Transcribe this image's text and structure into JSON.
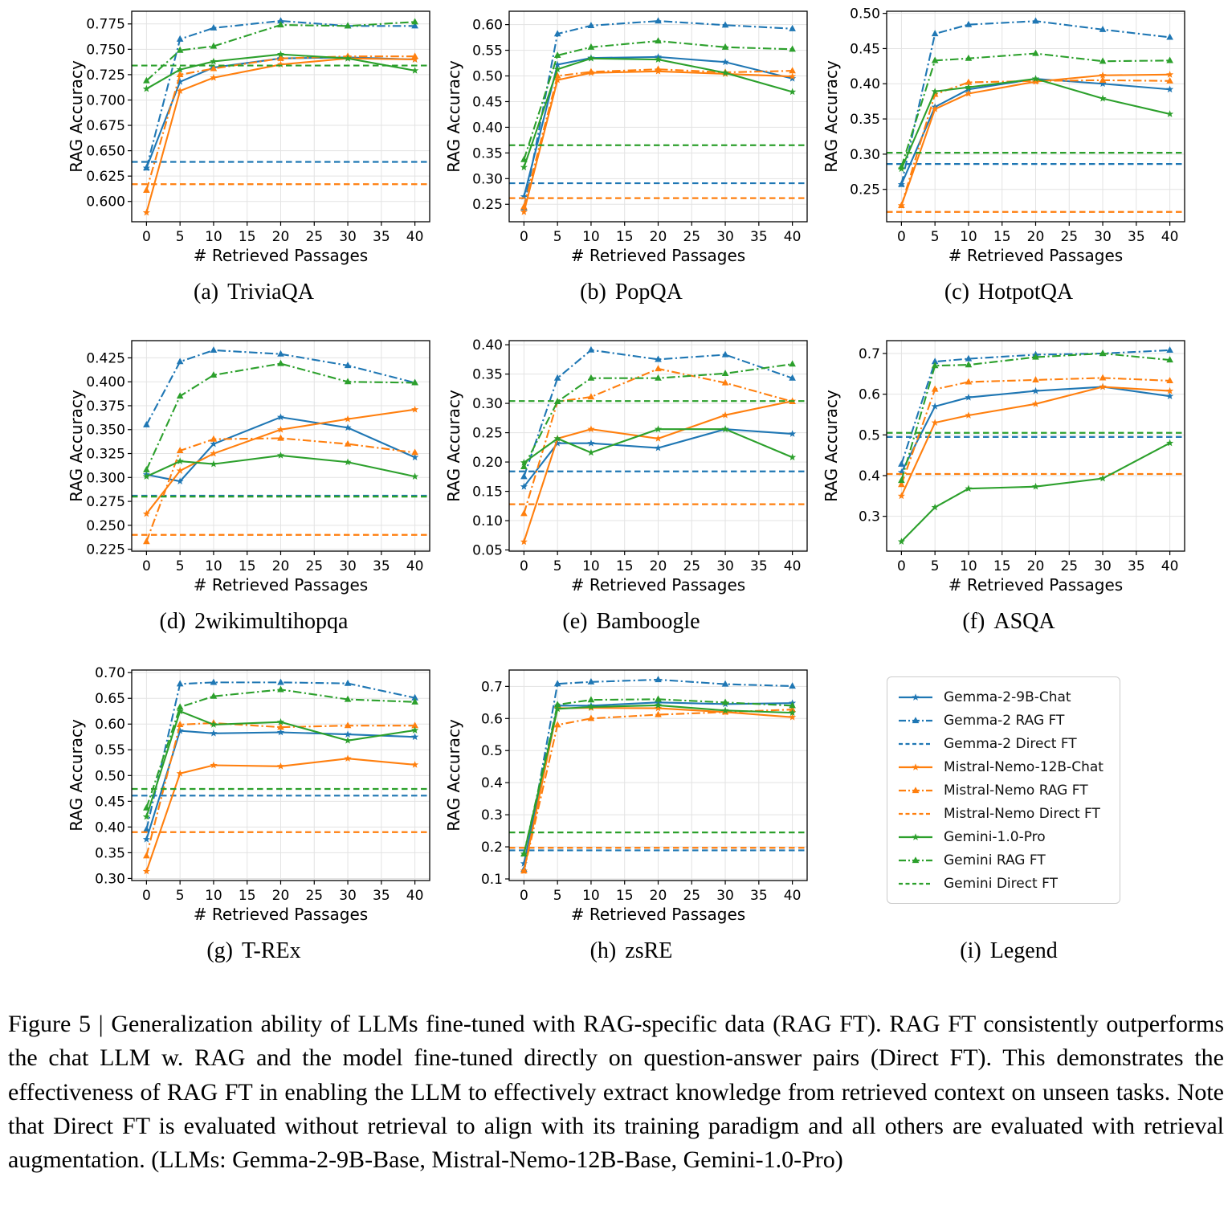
{
  "figure": {
    "caption": "Figure 5 | Generalization ability of LLMs fine-tuned with RAG-specific data (RAG FT). RAG FT consistently outperforms the chat LLM w. RAG and the model fine-tuned directly on question-answer pairs (Direct FT). This demonstrates the effectiveness of RAG FT in enabling the LLM to effectively extract knowledge from retrieved context on unseen tasks. Note that Direct FT is evaluated without retrieval to align with its training paradigm and all others are evaluated with retrieval augmentation. (LLMs: Gemma-2-9B-Base, Mistral-Nemo-12B-Base, Gemini-1.0-Pro)"
  },
  "axes": {
    "xlabel": "# Retrieved Passages",
    "ylabel": "RAG Accuracy",
    "x": [
      0,
      5,
      10,
      20,
      30,
      40
    ],
    "xticks": [
      0,
      5,
      10,
      15,
      20,
      25,
      30,
      35,
      40
    ],
    "xlim": [
      -2.2,
      42.2
    ]
  },
  "models": [
    {
      "name": "Gemma-2-9B-Chat",
      "color": "#1f77b4",
      "style": "solid",
      "marker": "star"
    },
    {
      "name": "Gemma-2 RAG FT",
      "color": "#1f77b4",
      "style": "dashdot",
      "marker": "triangle"
    },
    {
      "name": "Gemma-2 Direct FT",
      "color": "#1f77b4",
      "style": "dashed",
      "marker": "none"
    },
    {
      "name": "Mistral-Nemo-12B-Chat",
      "color": "#ff7f0e",
      "style": "solid",
      "marker": "star"
    },
    {
      "name": "Mistral-Nemo RAG FT",
      "color": "#ff7f0e",
      "style": "dashdot",
      "marker": "triangle"
    },
    {
      "name": "Mistral-Nemo Direct FT",
      "color": "#ff7f0e",
      "style": "dashed",
      "marker": "none"
    },
    {
      "name": "Gemini-1.0-Pro",
      "color": "#2ca02c",
      "style": "solid",
      "marker": "star"
    },
    {
      "name": "Gemini RAG FT",
      "color": "#2ca02c",
      "style": "dashdot",
      "marker": "triangle"
    },
    {
      "name": "Gemini Direct FT",
      "color": "#2ca02c",
      "style": "dashed",
      "marker": "none"
    }
  ],
  "chart_data": [
    {
      "type": "line",
      "label": "(a)",
      "title": "TriviaQA",
      "xlabel": "# Retrieved Passages",
      "ylabel": "RAG Accuracy",
      "ylim": [
        0.58,
        0.7875
      ],
      "ydec": 3,
      "yticks": [
        0.6,
        0.625,
        0.65,
        0.675,
        0.7,
        0.725,
        0.75,
        0.775
      ],
      "series": [
        {
          "name": "Gemma-2-9B-Chat",
          "values": [
            0.633,
            0.718,
            0.732,
            0.741,
            0.742,
            0.74
          ]
        },
        {
          "name": "Gemma-2 RAG FT",
          "values": [
            0.633,
            0.76,
            0.771,
            0.778,
            0.773,
            0.773
          ]
        },
        {
          "name": "Gemma-2 Direct FT",
          "hline": 0.639
        },
        {
          "name": "Mistral-Nemo-12B-Chat",
          "values": [
            0.589,
            0.709,
            0.722,
            0.735,
            0.741,
            0.74
          ]
        },
        {
          "name": "Mistral-Nemo RAG FT",
          "values": [
            0.611,
            0.725,
            0.731,
            0.741,
            0.743,
            0.743
          ]
        },
        {
          "name": "Mistral-Nemo Direct FT",
          "hline": 0.617
        },
        {
          "name": "Gemini-1.0-Pro",
          "values": [
            0.711,
            0.73,
            0.738,
            0.745,
            0.741,
            0.729
          ]
        },
        {
          "name": "Gemini RAG FT",
          "values": [
            0.719,
            0.749,
            0.753,
            0.774,
            0.773,
            0.777
          ]
        },
        {
          "name": "Gemini Direct FT",
          "hline": 0.734
        }
      ]
    },
    {
      "type": "line",
      "label": "(b)",
      "title": "PopQA",
      "xlabel": "# Retrieved Passages",
      "ylabel": "RAG Accuracy",
      "ylim": [
        0.216,
        0.626
      ],
      "ydec": 2,
      "yticks": [
        0.25,
        0.3,
        0.35,
        0.4,
        0.45,
        0.5,
        0.55,
        0.6
      ],
      "series": [
        {
          "name": "Gemma-2-9B-Chat",
          "values": [
            0.265,
            0.522,
            0.535,
            0.537,
            0.527,
            0.495
          ]
        },
        {
          "name": "Gemma-2 RAG FT",
          "values": [
            0.243,
            0.582,
            0.598,
            0.607,
            0.599,
            0.592
          ]
        },
        {
          "name": "Gemma-2 Direct FT",
          "hline": 0.291
        },
        {
          "name": "Mistral-Nemo-12B-Chat",
          "values": [
            0.235,
            0.492,
            0.506,
            0.509,
            0.504,
            0.499
          ]
        },
        {
          "name": "Mistral-Nemo RAG FT",
          "values": [
            0.245,
            0.5,
            0.508,
            0.513,
            0.507,
            0.51
          ]
        },
        {
          "name": "Mistral-Nemo Direct FT",
          "hline": 0.262
        },
        {
          "name": "Gemini-1.0-Pro",
          "values": [
            0.322,
            0.513,
            0.534,
            0.532,
            0.506,
            0.469
          ]
        },
        {
          "name": "Gemini RAG FT",
          "values": [
            0.337,
            0.54,
            0.556,
            0.568,
            0.556,
            0.552
          ]
        },
        {
          "name": "Gemini Direct FT",
          "hline": 0.365
        }
      ]
    },
    {
      "type": "line",
      "label": "(c)",
      "title": "HotpotQA",
      "xlabel": "# Retrieved Passages",
      "ylabel": "RAG Accuracy",
      "ylim": [
        0.204,
        0.503
      ],
      "ydec": 2,
      "yticks": [
        0.25,
        0.3,
        0.35,
        0.4,
        0.45,
        0.5
      ],
      "series": [
        {
          "name": "Gemma-2-9B-Chat",
          "values": [
            0.257,
            0.367,
            0.392,
            0.407,
            0.4,
            0.392
          ]
        },
        {
          "name": "Gemma-2 RAG FT",
          "values": [
            0.257,
            0.471,
            0.484,
            0.489,
            0.477,
            0.466
          ]
        },
        {
          "name": "Gemma-2 Direct FT",
          "hline": 0.286
        },
        {
          "name": "Mistral-Nemo-12B-Chat",
          "values": [
            0.227,
            0.364,
            0.386,
            0.403,
            0.412,
            0.413
          ]
        },
        {
          "name": "Mistral-Nemo RAG FT",
          "values": [
            0.227,
            0.385,
            0.402,
            0.404,
            0.405,
            0.404
          ]
        },
        {
          "name": "Mistral-Nemo Direct FT",
          "hline": 0.218
        },
        {
          "name": "Gemini-1.0-Pro",
          "values": [
            0.279,
            0.389,
            0.395,
            0.407,
            0.379,
            0.357
          ]
        },
        {
          "name": "Gemini RAG FT",
          "values": [
            0.282,
            0.433,
            0.436,
            0.443,
            0.432,
            0.433
          ]
        },
        {
          "name": "Gemini Direct FT",
          "hline": 0.302
        }
      ]
    },
    {
      "type": "line",
      "label": "(d)",
      "title": "2wikimultihopqa",
      "xlabel": "# Retrieved Passages",
      "ylabel": "RAG Accuracy",
      "ylim": [
        0.223,
        0.443
      ],
      "ydec": 3,
      "yticks": [
        0.225,
        0.25,
        0.275,
        0.3,
        0.325,
        0.35,
        0.375,
        0.4,
        0.425
      ],
      "series": [
        {
          "name": "Gemma-2-9B-Chat",
          "values": [
            0.303,
            0.296,
            0.335,
            0.363,
            0.352,
            0.321
          ]
        },
        {
          "name": "Gemma-2 RAG FT",
          "values": [
            0.355,
            0.421,
            0.433,
            0.429,
            0.417,
            0.399
          ]
        },
        {
          "name": "Gemma-2 Direct FT",
          "hline": 0.281
        },
        {
          "name": "Mistral-Nemo-12B-Chat",
          "values": [
            0.262,
            0.307,
            0.325,
            0.35,
            0.361,
            0.371
          ]
        },
        {
          "name": "Mistral-Nemo RAG FT",
          "values": [
            0.233,
            0.328,
            0.34,
            0.341,
            0.335,
            0.326
          ]
        },
        {
          "name": "Mistral-Nemo Direct FT",
          "hline": 0.24
        },
        {
          "name": "Gemini-1.0-Pro",
          "values": [
            0.301,
            0.317,
            0.314,
            0.323,
            0.316,
            0.301
          ]
        },
        {
          "name": "Gemini RAG FT",
          "values": [
            0.308,
            0.385,
            0.407,
            0.419,
            0.4,
            0.399
          ]
        },
        {
          "name": "Gemini Direct FT",
          "hline": 0.28
        }
      ]
    },
    {
      "type": "line",
      "label": "(e)",
      "title": "Bamboogle",
      "xlabel": "# Retrieved Passages",
      "ylabel": "RAG Accuracy",
      "ylim": [
        0.048,
        0.407
      ],
      "ydec": 2,
      "yticks": [
        0.05,
        0.1,
        0.15,
        0.2,
        0.25,
        0.3,
        0.35,
        0.4
      ],
      "series": [
        {
          "name": "Gemma-2-9B-Chat",
          "values": [
            0.158,
            0.232,
            0.232,
            0.224,
            0.256,
            0.248
          ]
        },
        {
          "name": "Gemma-2 RAG FT",
          "values": [
            0.175,
            0.343,
            0.391,
            0.375,
            0.383,
            0.343
          ]
        },
        {
          "name": "Gemma-2 Direct FT",
          "hline": 0.184
        },
        {
          "name": "Mistral-Nemo-12B-Chat",
          "values": [
            0.064,
            0.24,
            0.256,
            0.24,
            0.28,
            0.304
          ]
        },
        {
          "name": "Mistral-Nemo RAG FT",
          "values": [
            0.112,
            0.303,
            0.311,
            0.359,
            0.335,
            0.303
          ]
        },
        {
          "name": "Mistral-Nemo Direct FT",
          "hline": 0.128
        },
        {
          "name": "Gemini-1.0-Pro",
          "values": [
            0.199,
            0.24,
            0.216,
            0.256,
            0.256,
            0.208
          ]
        },
        {
          "name": "Gemini RAG FT",
          "values": [
            0.192,
            0.303,
            0.343,
            0.343,
            0.351,
            0.367
          ]
        },
        {
          "name": "Gemini Direct FT",
          "hline": 0.304
        }
      ]
    },
    {
      "type": "line",
      "label": "(f)",
      "title": "ASQA",
      "xlabel": "# Retrieved Passages",
      "ylabel": "RAG Accuracy",
      "ylim": [
        0.2145,
        0.7315
      ],
      "ydec": 1,
      "yticks": [
        0.3,
        0.4,
        0.5,
        0.6,
        0.7
      ],
      "series": [
        {
          "name": "Gemma-2-9B-Chat",
          "values": [
            0.408,
            0.57,
            0.592,
            0.608,
            0.618,
            0.595
          ]
        },
        {
          "name": "Gemma-2 RAG FT",
          "values": [
            0.428,
            0.68,
            0.687,
            0.697,
            0.7,
            0.708
          ]
        },
        {
          "name": "Gemma-2 Direct FT",
          "hline": 0.495
        },
        {
          "name": "Mistral-Nemo-12B-Chat",
          "values": [
            0.35,
            0.53,
            0.548,
            0.576,
            0.618,
            0.608
          ]
        },
        {
          "name": "Mistral-Nemo RAG FT",
          "values": [
            0.378,
            0.612,
            0.63,
            0.635,
            0.64,
            0.633
          ]
        },
        {
          "name": "Mistral-Nemo Direct FT",
          "hline": 0.404
        },
        {
          "name": "Gemini-1.0-Pro",
          "values": [
            0.238,
            0.322,
            0.368,
            0.373,
            0.393,
            0.48
          ]
        },
        {
          "name": "Gemini RAG FT",
          "values": [
            0.388,
            0.67,
            0.672,
            0.691,
            0.7,
            0.684
          ]
        },
        {
          "name": "Gemini Direct FT",
          "hline": 0.505
        }
      ]
    },
    {
      "type": "line",
      "label": "(g)",
      "title": "T-REx",
      "xlabel": "# Retrieved Passages",
      "ylabel": "RAG Accuracy",
      "ylim": [
        0.296,
        0.705
      ],
      "ydec": 2,
      "yticks": [
        0.3,
        0.35,
        0.4,
        0.45,
        0.5,
        0.55,
        0.6,
        0.65,
        0.7
      ],
      "series": [
        {
          "name": "Gemma-2-9B-Chat",
          "values": [
            0.376,
            0.587,
            0.582,
            0.584,
            0.58,
            0.575
          ]
        },
        {
          "name": "Gemma-2 RAG FT",
          "values": [
            0.395,
            0.678,
            0.681,
            0.681,
            0.679,
            0.651
          ]
        },
        {
          "name": "Gemma-2 Direct FT",
          "hline": 0.461
        },
        {
          "name": "Mistral-Nemo-12B-Chat",
          "values": [
            0.314,
            0.504,
            0.52,
            0.518,
            0.533,
            0.521
          ]
        },
        {
          "name": "Mistral-Nemo RAG FT",
          "values": [
            0.344,
            0.599,
            0.602,
            0.594,
            0.597,
            0.597
          ]
        },
        {
          "name": "Mistral-Nemo Direct FT",
          "hline": 0.39
        },
        {
          "name": "Gemini-1.0-Pro",
          "values": [
            0.42,
            0.625,
            0.599,
            0.604,
            0.568,
            0.588
          ]
        },
        {
          "name": "Gemini RAG FT",
          "values": [
            0.437,
            0.633,
            0.654,
            0.667,
            0.648,
            0.643
          ]
        },
        {
          "name": "Gemini Direct FT",
          "hline": 0.474
        }
      ]
    },
    {
      "type": "line",
      "label": "(h)",
      "title": "zsRE",
      "xlabel": "# Retrieved Passages",
      "ylabel": "RAG Accuracy",
      "ylim": [
        0.095,
        0.751
      ],
      "ydec": 1,
      "yticks": [
        0.1,
        0.2,
        0.3,
        0.4,
        0.5,
        0.6,
        0.7
      ],
      "series": [
        {
          "name": "Gemma-2-9B-Chat",
          "values": [
            0.148,
            0.64,
            0.64,
            0.65,
            0.645,
            0.648
          ]
        },
        {
          "name": "Gemma-2 RAG FT",
          "values": [
            0.13,
            0.708,
            0.714,
            0.721,
            0.707,
            0.701
          ]
        },
        {
          "name": "Gemma-2 Direct FT",
          "hline": 0.189
        },
        {
          "name": "Mistral-Nemo-12B-Chat",
          "values": [
            0.125,
            0.632,
            0.633,
            0.632,
            0.62,
            0.604
          ]
        },
        {
          "name": "Mistral-Nemo RAG FT",
          "values": [
            0.125,
            0.58,
            0.6,
            0.612,
            0.62,
            0.628
          ]
        },
        {
          "name": "Mistral-Nemo Direct FT",
          "hline": 0.197
        },
        {
          "name": "Gemini-1.0-Pro",
          "values": [
            0.178,
            0.63,
            0.636,
            0.641,
            0.625,
            0.618
          ]
        },
        {
          "name": "Gemini RAG FT",
          "values": [
            0.178,
            0.643,
            0.658,
            0.66,
            0.65,
            0.64
          ]
        },
        {
          "name": "Gemini Direct FT",
          "hline": 0.245
        }
      ]
    }
  ],
  "legend_panel": {
    "label": "(i)",
    "title": "Legend"
  }
}
